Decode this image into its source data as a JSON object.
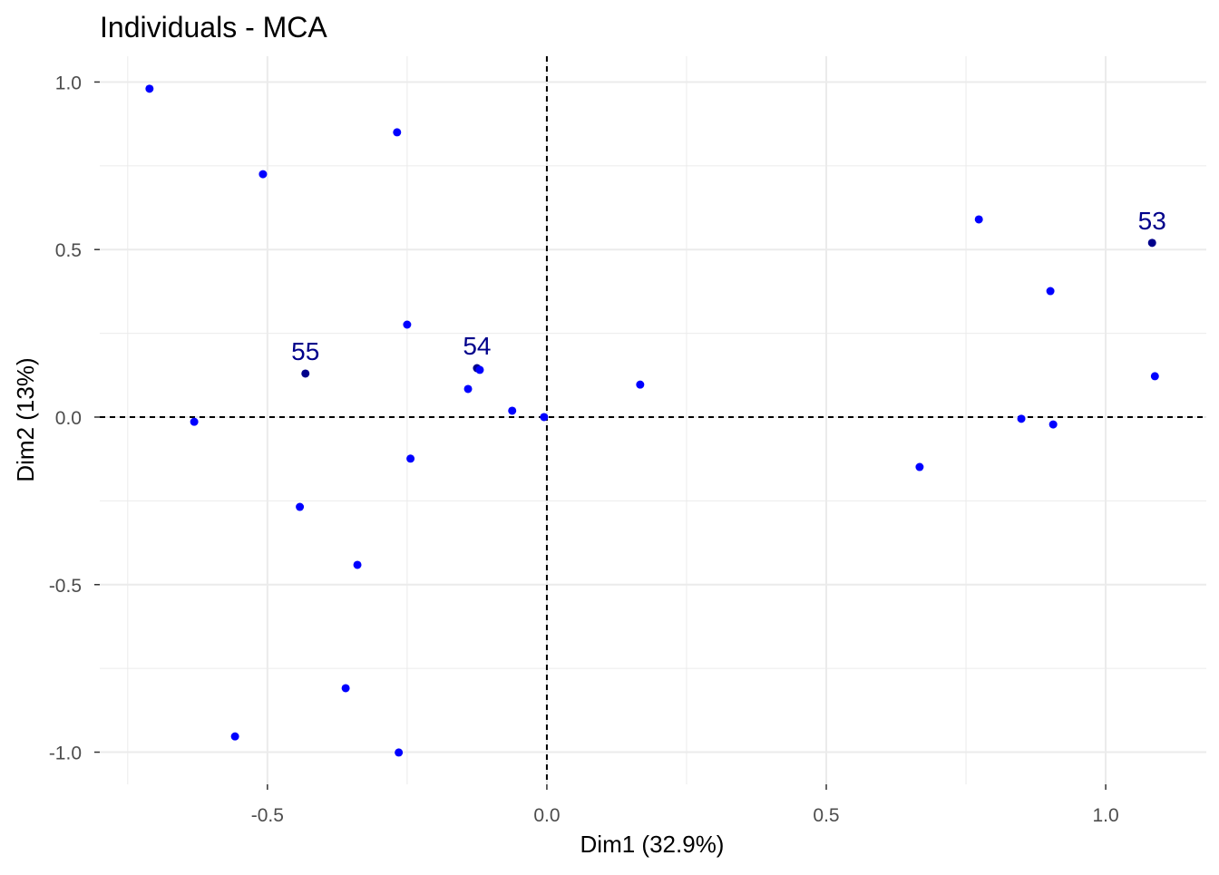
{
  "chart_data": {
    "type": "scatter",
    "title": "Individuals - MCA",
    "xlabel": "Dim1 (32.9%)",
    "ylabel": "Dim2 (13%)",
    "xlim": [
      -0.8,
      1.18
    ],
    "ylim": [
      -1.096,
      1.077
    ],
    "xticks": [
      {
        "v": -0.5,
        "label": "-0.5"
      },
      {
        "v": 0.0,
        "label": "0.0"
      },
      {
        "v": 0.5,
        "label": "0.5"
      },
      {
        "v": 1.0,
        "label": "1.0"
      }
    ],
    "yticks": [
      {
        "v": 1.0,
        "label": "1.0"
      },
      {
        "v": 0.5,
        "label": "0.5"
      },
      {
        "v": 0.0,
        "label": "0.0"
      },
      {
        "v": -0.5,
        "label": "-0.5"
      },
      {
        "v": -1.0,
        "label": "-1.0"
      }
    ],
    "minor_x": [
      -0.75,
      -0.25,
      0.25,
      0.75
    ],
    "minor_y": [
      -0.75,
      -0.25,
      0.25,
      0.75
    ],
    "grid": true,
    "reference_lines": {
      "x": 0,
      "y": 0
    },
    "colors": {
      "point": "#0000FF",
      "highlight": "#00008B",
      "label": "#00008B",
      "grid": "#EBEBEB"
    },
    "points": [
      {
        "x": -0.711,
        "y": 0.98
      },
      {
        "x": -0.508,
        "y": 0.725
      },
      {
        "x": -0.268,
        "y": 0.85
      },
      {
        "x": -0.25,
        "y": 0.276
      },
      {
        "x": -0.432,
        "y": 0.13,
        "label": "55",
        "highlight": true
      },
      {
        "x": -0.125,
        "y": 0.146,
        "label": "54",
        "highlight": true
      },
      {
        "x": -0.12,
        "y": 0.141
      },
      {
        "x": -0.141,
        "y": 0.084
      },
      {
        "x": -0.062,
        "y": 0.019
      },
      {
        "x": -0.005,
        "y": 0.0
      },
      {
        "x": 0.167,
        "y": 0.097
      },
      {
        "x": -0.631,
        "y": -0.014
      },
      {
        "x": -0.244,
        "y": -0.124
      },
      {
        "x": -0.442,
        "y": -0.268
      },
      {
        "x": -0.339,
        "y": -0.441
      },
      {
        "x": -0.36,
        "y": -0.809
      },
      {
        "x": -0.558,
        "y": -0.953
      },
      {
        "x": -0.265,
        "y": -1.001
      },
      {
        "x": 0.667,
        "y": -0.149
      },
      {
        "x": 0.773,
        "y": 0.59
      },
      {
        "x": 0.901,
        "y": 0.376
      },
      {
        "x": 1.083,
        "y": 0.52,
        "label": "53",
        "highlight": true
      },
      {
        "x": 1.088,
        "y": 0.122
      },
      {
        "x": 0.849,
        "y": -0.005
      },
      {
        "x": 0.906,
        "y": -0.022
      }
    ]
  }
}
